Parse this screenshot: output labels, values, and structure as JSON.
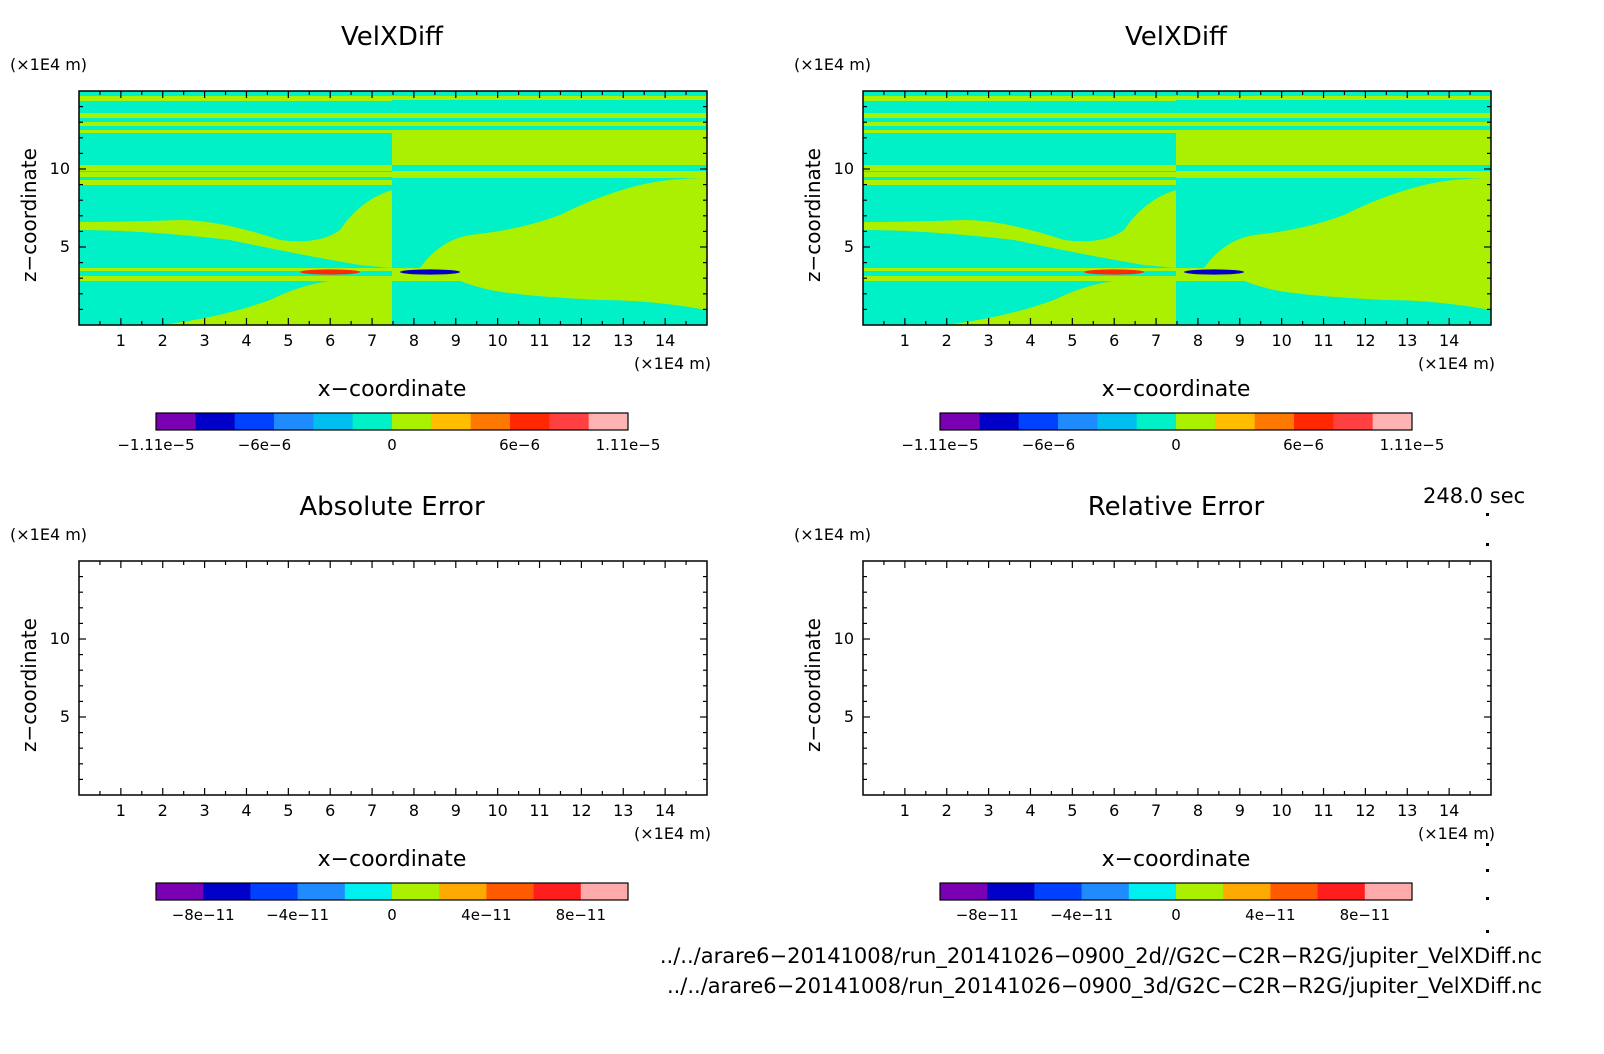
{
  "chart_data": [
    {
      "type": "heatmap",
      "title": "VelXDiff",
      "xlabel": "x−coordinate",
      "ylabel": "z−coordinate",
      "xunit": "(×1E4 m)",
      "yunit": "(×1E4 m)",
      "xlim": [
        0,
        15
      ],
      "ylim": [
        0,
        15
      ],
      "xticks": [
        "1",
        "2",
        "3",
        "4",
        "5",
        "6",
        "7",
        "8",
        "9",
        "10",
        "11",
        "12",
        "13",
        "14"
      ],
      "yticks": [
        "5",
        "10"
      ],
      "colorbar": {
        "colors": [
          "#7a00b4",
          "#0000c8",
          "#0040ff",
          "#1e8cff",
          "#00bef0",
          "#00f0c8",
          "#aaf000",
          "#ffbe00",
          "#ff7800",
          "#ff2800",
          "#ff4040",
          "#ffb4b4"
        ],
        "labels": [
          "−1.11e−5",
          "−6e−6",
          "0",
          "6e−6",
          "1.11e−5"
        ],
        "label_values": [
          -1.11e-05,
          -6e-06,
          0,
          6e-06,
          1.11e-05
        ],
        "range": [
          -1.11e-05,
          1.11e-05
        ]
      }
    },
    {
      "type": "heatmap",
      "title": "VelXDiff",
      "xlabel": "x−coordinate",
      "ylabel": "z−coordinate",
      "xunit": "(×1E4 m)",
      "yunit": "(×1E4 m)",
      "xlim": [
        0,
        15
      ],
      "ylim": [
        0,
        15
      ],
      "xticks": [
        "1",
        "2",
        "3",
        "4",
        "5",
        "6",
        "7",
        "8",
        "9",
        "10",
        "11",
        "12",
        "13",
        "14"
      ],
      "yticks": [
        "5",
        "10"
      ],
      "colorbar": {
        "colors": [
          "#7a00b4",
          "#0000c8",
          "#0040ff",
          "#1e8cff",
          "#00bef0",
          "#00f0c8",
          "#aaf000",
          "#ffbe00",
          "#ff7800",
          "#ff2800",
          "#ff4040",
          "#ffb4b4"
        ],
        "labels": [
          "−1.11e−5",
          "−6e−6",
          "0",
          "6e−6",
          "1.11e−5"
        ],
        "label_values": [
          -1.11e-05,
          -6e-06,
          0,
          6e-06,
          1.11e-05
        ],
        "range": [
          -1.11e-05,
          1.11e-05
        ]
      }
    },
    {
      "type": "heatmap",
      "title": "Absolute Error",
      "xlabel": "x−coordinate",
      "ylabel": "z−coordinate",
      "xunit": "(×1E4 m)",
      "yunit": "(×1E4 m)",
      "xlim": [
        0,
        15
      ],
      "ylim": [
        0,
        15
      ],
      "xticks": [
        "1",
        "2",
        "3",
        "4",
        "5",
        "6",
        "7",
        "8",
        "9",
        "10",
        "11",
        "12",
        "13",
        "14"
      ],
      "yticks": [
        "5",
        "10"
      ],
      "colorbar": {
        "colors": [
          "#7a00b4",
          "#0000c8",
          "#0040ff",
          "#1e8cff",
          "#00f0f0",
          "#aaf000",
          "#ffaa00",
          "#ff5a00",
          "#ff1e1e",
          "#ffaaaa"
        ],
        "labels": [
          "−8e−11",
          "−4e−11",
          "0",
          "4e−11",
          "8e−11"
        ],
        "label_values": [
          -8e-11,
          -4e-11,
          0,
          4e-11,
          8e-11
        ],
        "range": [
          -1e-10,
          1e-10
        ]
      }
    },
    {
      "type": "heatmap",
      "title": "Relative Error",
      "xlabel": "x−coordinate",
      "ylabel": "z−coordinate",
      "xunit": "(×1E4 m)",
      "yunit": "(×1E4 m)",
      "xlim": [
        0,
        15
      ],
      "ylim": [
        0,
        15
      ],
      "xticks": [
        "1",
        "2",
        "3",
        "4",
        "5",
        "6",
        "7",
        "8",
        "9",
        "10",
        "11",
        "12",
        "13",
        "14"
      ],
      "yticks": [
        "5",
        "10"
      ],
      "colorbar": {
        "colors": [
          "#7a00b4",
          "#0000c8",
          "#0040ff",
          "#1e8cff",
          "#00f0f0",
          "#aaf000",
          "#ffaa00",
          "#ff5a00",
          "#ff1e1e",
          "#ffaaaa"
        ],
        "labels": [
          "−8e−11",
          "−4e−11",
          "0",
          "4e−11",
          "8e−11"
        ],
        "label_values": [
          -8e-11,
          -4e-11,
          0,
          4e-11,
          8e-11
        ],
        "range": [
          -1e-10,
          1e-10
        ]
      }
    }
  ],
  "field": {
    "cyan": "#00f0c8",
    "green": "#aaf000",
    "red": "#ff2800",
    "blue": "#0000c8"
  },
  "timestamp": "248.0 sec",
  "files": [
    "../../arare6−20141008/run_20141026−0900_2d//G2C−C2R−R2G/jupiter_VelXDiff.nc",
    "../../arare6−20141008/run_20141026−0900_3d/G2C−C2R−R2G/jupiter_VelXDiff.nc"
  ]
}
